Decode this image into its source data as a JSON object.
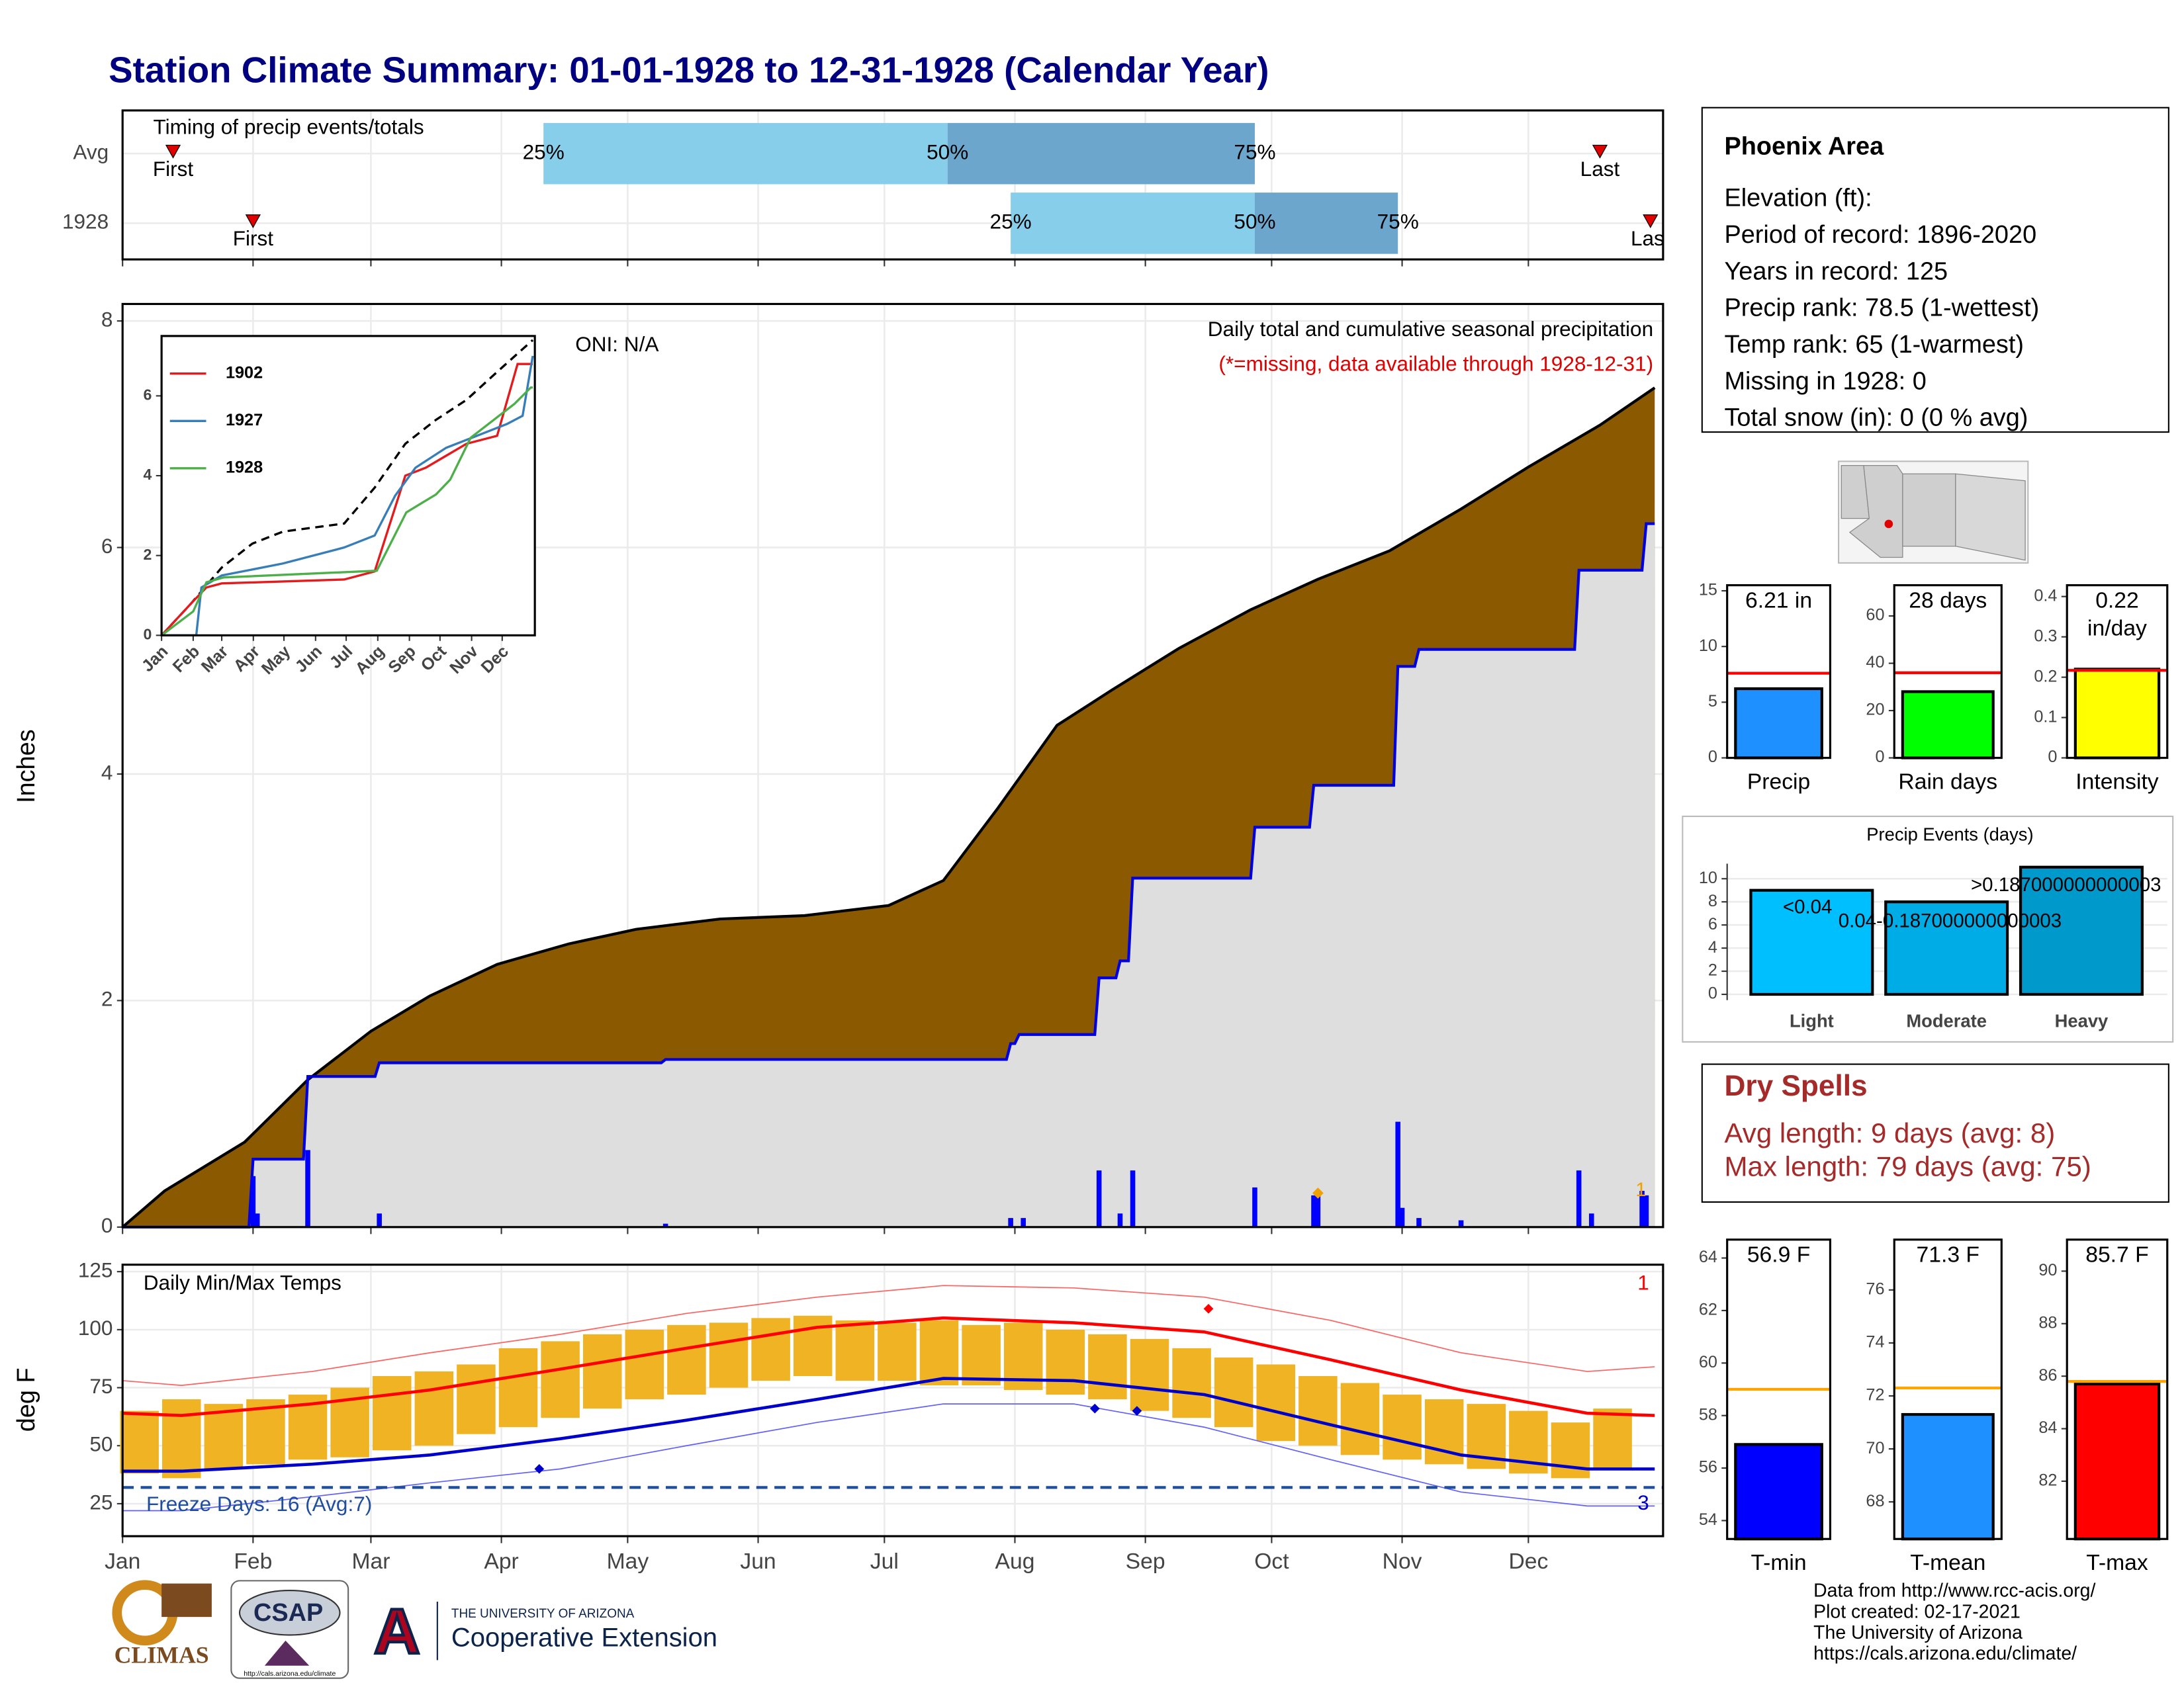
{
  "title": "Station Climate Summary: 01-01-1928 to 12-31-1928 (Calendar Year)",
  "chart_data": [
    {
      "type": "timing",
      "title": "Timing of precip events/totals",
      "categories": [
        "Avg",
        "1928"
      ],
      "first": [
        13,
        32
      ],
      "q25": [
        101,
        212
      ],
      "q50": [
        197,
        270
      ],
      "q75": [
        270,
        304
      ],
      "last": [
        352,
        364
      ],
      "first_label": "First",
      "last_label": "Last",
      "quantile_labels": [
        "25%",
        "50%",
        "75%"
      ],
      "colors": [
        "#87ceeb",
        "#6ca6cd"
      ],
      "marker_color": "#e00000",
      "xlim": [
        1,
        367
      ],
      "xticks": [
        1,
        32,
        60,
        91,
        121,
        152,
        182,
        213,
        244,
        274,
        305,
        335
      ]
    },
    {
      "type": "precip",
      "ylabel": "Inches",
      "ylim": [
        0,
        8.15
      ],
      "yticks": [
        0,
        2,
        4,
        6,
        8
      ],
      "xlim": [
        1,
        367
      ],
      "xticks": [
        1,
        32,
        60,
        91,
        121,
        152,
        182,
        213,
        244,
        274,
        305,
        335
      ],
      "annotations": [
        "ONI: N/A",
        "Daily total and cumulative seasonal precipitation",
        "(*=missing, data available through 1928-12-31)"
      ],
      "average": {
        "color": "#8b5a00",
        "x": [
          1,
          11,
          30,
          45,
          60,
          74,
          90,
          107,
          123,
          143,
          163,
          183,
          196,
          209,
          223,
          236,
          252,
          269,
          285,
          302,
          319,
          335,
          352,
          365
        ],
        "values": [
          0,
          0.32,
          0.75,
          1.3,
          1.73,
          2.04,
          2.32,
          2.5,
          2.63,
          2.72,
          2.75,
          2.84,
          3.06,
          3.7,
          4.43,
          4.74,
          5.11,
          5.45,
          5.72,
          5.97,
          6.34,
          6.71,
          7.08,
          7.41
        ]
      },
      "cumulative": {
        "color": "#0000e0",
        "fill": "#dedede",
        "x": [
          1,
          31,
          32,
          44,
          45,
          61,
          62,
          129,
          130,
          211,
          212,
          213,
          214,
          232,
          233,
          237,
          238,
          240,
          241,
          269,
          270,
          283,
          284,
          303,
          304,
          308,
          309,
          346,
          347,
          362,
          363,
          365
        ],
        "values": [
          0,
          0,
          0.6,
          0.6,
          1.33,
          1.33,
          1.45,
          1.45,
          1.48,
          1.48,
          1.62,
          1.62,
          1.7,
          1.7,
          2.2,
          2.2,
          2.35,
          2.35,
          3.08,
          3.08,
          3.53,
          3.53,
          3.9,
          3.9,
          4.95,
          4.95,
          5.1,
          5.1,
          5.8,
          5.8,
          6.21,
          6.21
        ]
      },
      "daily": {
        "color": "#0000ff",
        "x": [
          32,
          33,
          45,
          62,
          130,
          212,
          215,
          233,
          238,
          241,
          270,
          284,
          285,
          304,
          305,
          309,
          319,
          347,
          350,
          362,
          363
        ],
        "values": [
          0.45,
          0.12,
          0.68,
          0.12,
          0.03,
          0.08,
          0.08,
          0.5,
          0.12,
          0.5,
          0.35,
          0.28,
          0.28,
          0.93,
          0.17,
          0.08,
          0.06,
          0.5,
          0.12,
          0.32,
          0.28
        ]
      },
      "records": {
        "color": "#f0a000",
        "x": [
          285
        ],
        "values": [
          0.3
        ],
        "count": 1
      }
    },
    {
      "type": "inset",
      "ylim": [
        0,
        7.5
      ],
      "yticks": [
        0,
        2,
        4,
        6
      ],
      "xlim": [
        1,
        367
      ],
      "xticks": [
        {
          "value": 1,
          "label": "Jan"
        },
        {
          "value": 32,
          "label": "Feb"
        },
        {
          "value": 60,
          "label": "Mar"
        },
        {
          "value": 91,
          "label": "Apr"
        },
        {
          "value": 121,
          "label": "May"
        },
        {
          "value": 152,
          "label": "Jun"
        },
        {
          "value": 182,
          "label": "Jul"
        },
        {
          "value": 213,
          "label": "Aug"
        },
        {
          "value": 244,
          "label": "Sep"
        },
        {
          "value": 274,
          "label": "Oct"
        },
        {
          "value": 305,
          "label": "Nov"
        },
        {
          "value": 335,
          "label": "Dec"
        }
      ],
      "average": {
        "x": [
          1,
          30,
          60,
          90,
          120,
          150,
          180,
          210,
          240,
          270,
          300,
          330,
          365
        ],
        "values": [
          0,
          0.8,
          1.7,
          2.3,
          2.6,
          2.7,
          2.8,
          3.7,
          4.8,
          5.4,
          5.9,
          6.6,
          7.4
        ]
      },
      "series": [
        {
          "name": "1902",
          "color": "#e41a1c",
          "x": [
            1,
            30,
            45,
            60,
            180,
            210,
            240,
            260,
            280,
            300,
            330,
            350,
            365
          ],
          "values": [
            0,
            0.8,
            1.2,
            1.3,
            1.4,
            1.6,
            4.0,
            4.2,
            4.5,
            4.8,
            5.0,
            6.8,
            6.8
          ]
        },
        {
          "name": "1927",
          "color": "#377eb8",
          "x": [
            1,
            35,
            40,
            60,
            120,
            180,
            210,
            230,
            250,
            280,
            310,
            340,
            355,
            365
          ],
          "values": [
            0,
            0,
            1.2,
            1.5,
            1.8,
            2.2,
            2.5,
            3.5,
            4.2,
            4.7,
            5.0,
            5.3,
            5.5,
            7.0
          ]
        },
        {
          "name": "1928",
          "color": "#4daf4a",
          "x": [
            1,
            32,
            45,
            62,
            212,
            241,
            270,
            284,
            304,
            347,
            363,
            365
          ],
          "values": [
            0,
            0.6,
            1.33,
            1.45,
            1.62,
            3.08,
            3.53,
            3.9,
            4.95,
            5.8,
            6.21,
            6.21
          ]
        }
      ]
    },
    {
      "type": "temperature",
      "title": "Daily Min/Max Temps",
      "ylabel": "deg F",
      "ylim": [
        11,
        128
      ],
      "yticks": [
        25,
        50,
        75,
        100,
        125
      ],
      "xlim": [
        1,
        367
      ],
      "xticks": [
        {
          "value": 1,
          "label": "Jan"
        },
        {
          "value": 32,
          "label": "Feb"
        },
        {
          "value": 60,
          "label": "Mar"
        },
        {
          "value": 91,
          "label": "Apr"
        },
        {
          "value": 121,
          "label": "May"
        },
        {
          "value": 152,
          "label": "Jun"
        },
        {
          "value": 182,
          "label": "Jul"
        },
        {
          "value": 213,
          "label": "Aug"
        },
        {
          "value": 244,
          "label": "Sep"
        },
        {
          "value": 274,
          "label": "Oct"
        },
        {
          "value": 305,
          "label": "Nov"
        },
        {
          "value": 335,
          "label": "Dec"
        }
      ],
      "normal_max": {
        "color": "#ff0000",
        "x": [
          1,
          15,
          46,
          74,
          105,
          135,
          166,
          196,
          227,
          258,
          288,
          319,
          349,
          365
        ],
        "values": [
          64,
          63,
          68,
          74,
          83,
          92,
          101,
          105,
          103,
          99,
          87,
          74,
          64,
          63
        ]
      },
      "normal_min": {
        "color": "#0000cc",
        "x": [
          1,
          15,
          46,
          74,
          105,
          135,
          166,
          196,
          227,
          258,
          288,
          319,
          349,
          365
        ],
        "values": [
          39,
          39,
          42,
          46,
          53,
          61,
          70,
          79,
          78,
          72,
          59,
          46,
          40,
          40
        ]
      },
      "record_max": {
        "color": "#ff6060",
        "x": [
          1,
          15,
          46,
          74,
          105,
          135,
          166,
          196,
          227,
          258,
          288,
          319,
          349,
          365
        ],
        "values": [
          78,
          76,
          82,
          90,
          98,
          107,
          114,
          119,
          118,
          114,
          104,
          90,
          82,
          84
        ]
      },
      "record_min": {
        "color": "#6060ff",
        "x": [
          1,
          15,
          46,
          74,
          105,
          135,
          166,
          196,
          227,
          258,
          288,
          319,
          349,
          365
        ],
        "values": [
          22,
          22,
          28,
          34,
          40,
          50,
          60,
          68,
          68,
          58,
          44,
          30,
          24,
          24
        ]
      },
      "daily": {
        "color": "#f0b323",
        "x": [
          5,
          15,
          25,
          35,
          45,
          55,
          65,
          75,
          85,
          95,
          105,
          115,
          125,
          135,
          145,
          155,
          165,
          175,
          185,
          195,
          205,
          215,
          225,
          235,
          245,
          255,
          265,
          275,
          285,
          295,
          305,
          315,
          325,
          335,
          345,
          355
        ],
        "low": [
          38,
          36,
          40,
          42,
          44,
          45,
          48,
          50,
          55,
          58,
          62,
          66,
          70,
          72,
          75,
          78,
          80,
          78,
          78,
          76,
          76,
          74,
          72,
          70,
          65,
          62,
          58,
          52,
          50,
          46,
          44,
          42,
          40,
          38,
          36,
          40
        ],
        "high": [
          65,
          70,
          68,
          70,
          72,
          75,
          80,
          82,
          85,
          92,
          95,
          98,
          100,
          102,
          103,
          105,
          106,
          104,
          103,
          104,
          102,
          103,
          100,
          98,
          96,
          92,
          88,
          85,
          80,
          77,
          72,
          70,
          68,
          65,
          60,
          66
        ]
      },
      "freeze": 32,
      "freeze_color": "#1f4e9c",
      "freeze_label": "Freeze Days: 16 (Avg:7)",
      "high_records": {
        "color": "#ff0000",
        "x": [
          259
        ],
        "values": [
          109
        ],
        "count": 1
      },
      "low_records": {
        "color": "#0000cc",
        "x": [
          100,
          232,
          242
        ],
        "values": [
          40,
          66,
          65
        ],
        "count": 3
      }
    },
    {
      "type": "single",
      "categories": [
        "Precip"
      ],
      "values": [
        6.21
      ],
      "value_labels": [
        "6.21 in"
      ],
      "average": 7.6,
      "color": "#1e90ff",
      "average_color": "#ff0000",
      "ylim": [
        0,
        15.5
      ],
      "yticks": [
        0,
        5,
        10,
        15
      ]
    },
    {
      "type": "single",
      "categories": [
        "Rain days"
      ],
      "values": [
        28
      ],
      "value_labels": [
        "28 days"
      ],
      "average": 36,
      "color": "#00ff00",
      "average_color": "#ff0000",
      "ylim": [
        0,
        73
      ],
      "yticks": [
        0,
        20,
        40,
        60
      ]
    },
    {
      "type": "single",
      "categories": [
        "Intensity"
      ],
      "values": [
        0.22
      ],
      "value_labels": [
        "0.22 in/day"
      ],
      "average": 0.217,
      "color": "#ffff00",
      "average_color": "#ff0000",
      "ylim": [
        0,
        0.428
      ],
      "yticks": [
        0,
        0.1,
        0.2,
        0.3,
        0.4
      ]
    },
    {
      "type": "events",
      "title": "Precip Events (days)",
      "categories": [
        "Light",
        "Moderate",
        "Heavy"
      ],
      "values": [
        9,
        8,
        11
      ],
      "thresholds": [
        "<0.04",
        "0.04-0.187000000000003",
        ">0.187000000000003"
      ],
      "colors": [
        "#00bfff",
        "#00ace6",
        "#0099cc"
      ],
      "ylim": [
        -0.5,
        11.3
      ],
      "yticks": [
        0,
        2,
        4,
        6,
        8,
        10
      ]
    },
    {
      "type": "single",
      "categories": [
        "T-min"
      ],
      "values": [
        56.9
      ],
      "value_labels": [
        "56.9 F"
      ],
      "average": 59,
      "color": "#0000ff",
      "average_color": "#ffa500",
      "ylim": [
        53.3,
        64.7
      ],
      "yticks": [
        54,
        56,
        58,
        60,
        62,
        64
      ]
    },
    {
      "type": "single",
      "categories": [
        "T-mean"
      ],
      "values": [
        71.3
      ],
      "value_labels": [
        "71.3 F"
      ],
      "average": 72.3,
      "color": "#1e90ff",
      "average_color": "#ffa500",
      "ylim": [
        66.6,
        77.9
      ],
      "yticks": [
        68,
        70,
        72,
        74,
        76
      ]
    },
    {
      "type": "single",
      "categories": [
        "T-max"
      ],
      "values": [
        85.7
      ],
      "value_labels": [
        "85.7 F"
      ],
      "average": 85.8,
      "color": "#ff0000",
      "average_color": "#ffa500",
      "ylim": [
        79.8,
        91.2
      ],
      "yticks": [
        82,
        84,
        86,
        88,
        90
      ]
    }
  ],
  "info": {
    "title": "Phoenix Area",
    "lines": [
      "Elevation (ft):",
      "Period of record: 1896-2020",
      "Years in record: 125",
      "Precip rank: 78.5 (1-wettest)",
      "Temp rank: 65 (1-warmest)",
      "Missing in 1928: 0",
      "Total snow (in): 0 (0 % avg)"
    ]
  },
  "dry_spells": {
    "title": "Dry Spells",
    "lines": [
      "Avg length: 9 days (avg: 8)",
      "Max length: 79 days (avg: 75)"
    ]
  },
  "footer": [
    "Data from http://www.rcc-acis.org/",
    "Plot created: 02-17-2021",
    "The University of Arizona",
    "https://cals.arizona.edu/climate/"
  ],
  "logos": {
    "climas": "CLIMAS",
    "csap": "CSAP",
    "csap_url": "http://cals.arizona.edu/climate",
    "university": "THE UNIVERSITY OF ARIZONA",
    "extension": "Cooperative Extension"
  }
}
